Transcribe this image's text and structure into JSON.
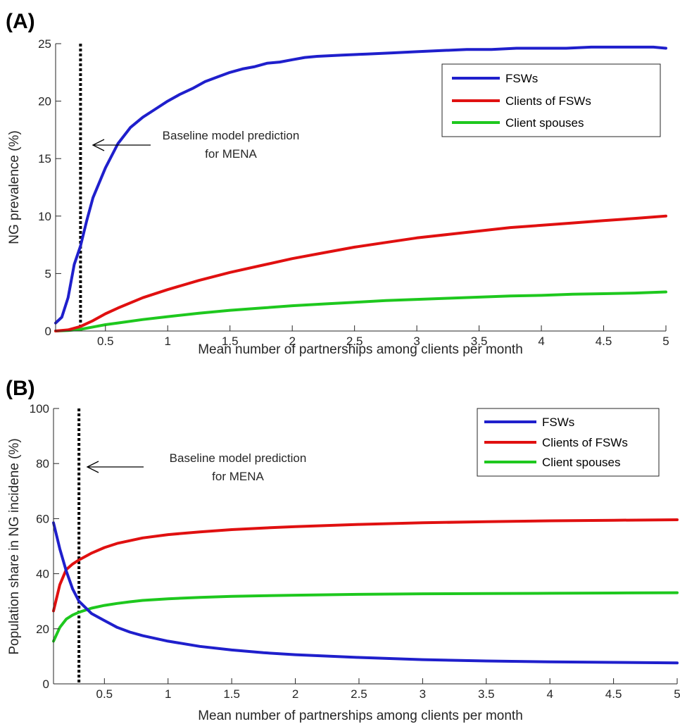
{
  "chart_data": [
    {
      "panel": "(A)",
      "type": "line",
      "xlabel": "Mean number of partnerships among clients per month",
      "ylabel": "NG prevalence (%)",
      "xlim": [
        0.1,
        5
      ],
      "ylim": [
        0,
        25
      ],
      "xticks": [
        0.5,
        1,
        1.5,
        2,
        2.5,
        3,
        3.5,
        4,
        4.5,
        5
      ],
      "yticks": [
        0,
        5,
        10,
        15,
        20,
        25
      ],
      "legend_position": "top-right",
      "grid": false,
      "baseline_x": 0.3,
      "annotation": [
        "Baseline model prediction",
        "for MENA"
      ],
      "colors": {
        "FSWs": "#0000ff",
        "Clients of FSWs": "#ff0000",
        "Client spouses": "#00cc00"
      },
      "series": [
        {
          "name": "FSWs",
          "color": "#1f1fcc",
          "x": [
            0.1,
            0.15,
            0.2,
            0.25,
            0.3,
            0.35,
            0.4,
            0.5,
            0.6,
            0.7,
            0.8,
            0.9,
            1.0,
            1.1,
            1.2,
            1.3,
            1.4,
            1.5,
            1.6,
            1.7,
            1.8,
            1.9,
            2.0,
            2.1,
            2.2,
            2.4,
            2.6,
            2.8,
            3.0,
            3.2,
            3.4,
            3.6,
            3.8,
            4.0,
            4.2,
            4.4,
            4.6,
            4.8,
            4.9,
            5.0
          ],
          "y": [
            0.7,
            1.2,
            2.9,
            5.8,
            7.4,
            9.6,
            11.6,
            14.2,
            16.3,
            17.7,
            18.6,
            19.3,
            20.0,
            20.6,
            21.1,
            21.7,
            22.1,
            22.5,
            22.8,
            23.0,
            23.3,
            23.4,
            23.6,
            23.8,
            23.9,
            24.0,
            24.1,
            24.2,
            24.3,
            24.4,
            24.5,
            24.5,
            24.6,
            24.6,
            24.6,
            24.7,
            24.7,
            24.7,
            24.7,
            24.6
          ]
        },
        {
          "name": "Clients of FSWs",
          "color": "#e01010",
          "x": [
            0.1,
            0.2,
            0.3,
            0.4,
            0.5,
            0.6,
            0.8,
            1.0,
            1.25,
            1.5,
            1.75,
            2.0,
            2.25,
            2.5,
            2.75,
            3.0,
            3.25,
            3.5,
            3.75,
            4.0,
            4.25,
            4.5,
            4.75,
            5.0
          ],
          "y": [
            0.0,
            0.1,
            0.4,
            0.9,
            1.5,
            2.0,
            2.9,
            3.6,
            4.4,
            5.1,
            5.7,
            6.3,
            6.8,
            7.3,
            7.7,
            8.1,
            8.4,
            8.7,
            9.0,
            9.2,
            9.4,
            9.6,
            9.8,
            10.0
          ]
        },
        {
          "name": "Client spouses",
          "color": "#1ec81e",
          "x": [
            0.1,
            0.2,
            0.3,
            0.4,
            0.5,
            0.6,
            0.8,
            1.0,
            1.25,
            1.5,
            1.75,
            2.0,
            2.25,
            2.5,
            2.75,
            3.0,
            3.25,
            3.5,
            3.75,
            4.0,
            4.25,
            4.5,
            4.75,
            5.0
          ],
          "y": [
            0.0,
            0.05,
            0.15,
            0.35,
            0.55,
            0.7,
            1.0,
            1.25,
            1.55,
            1.8,
            2.0,
            2.2,
            2.35,
            2.5,
            2.65,
            2.75,
            2.85,
            2.95,
            3.05,
            3.1,
            3.2,
            3.25,
            3.3,
            3.4
          ]
        }
      ]
    },
    {
      "panel": "(B)",
      "type": "line",
      "xlabel": "Mean number of partnerships among clients per month",
      "ylabel": "Population share in NG incidene (%)",
      "xlim": [
        0.1,
        5
      ],
      "ylim": [
        0,
        100
      ],
      "xticks": [
        0.5,
        1,
        1.5,
        2,
        2.5,
        3,
        3.5,
        4,
        4.5,
        5
      ],
      "yticks": [
        0,
        20,
        40,
        60,
        80,
        100
      ],
      "legend_position": "top-right",
      "grid": false,
      "baseline_x": 0.3,
      "annotation": [
        "Baseline model prediction",
        "for MENA"
      ],
      "colors": {
        "FSWs": "#0000ff",
        "Clients of FSWs": "#ff0000",
        "Client spouses": "#00cc00"
      },
      "series": [
        {
          "name": "FSWs",
          "color": "#1f1fcc",
          "x": [
            0.1,
            0.15,
            0.2,
            0.25,
            0.3,
            0.4,
            0.5,
            0.6,
            0.7,
            0.8,
            1.0,
            1.25,
            1.5,
            1.75,
            2.0,
            2.5,
            3.0,
            3.5,
            4.0,
            4.5,
            5.0
          ],
          "y": [
            58.5,
            49.0,
            41.0,
            34.5,
            30.0,
            25.5,
            23.0,
            20.5,
            18.8,
            17.5,
            15.5,
            13.6,
            12.3,
            11.3,
            10.6,
            9.6,
            8.8,
            8.3,
            8.0,
            7.8,
            7.6
          ]
        },
        {
          "name": "Clients of FSWs",
          "color": "#e01010",
          "x": [
            0.1,
            0.15,
            0.2,
            0.25,
            0.3,
            0.4,
            0.5,
            0.6,
            0.7,
            0.8,
            1.0,
            1.25,
            1.5,
            1.75,
            2.0,
            2.5,
            3.0,
            3.5,
            4.0,
            4.5,
            5.0
          ],
          "y": [
            26.5,
            36.0,
            41.5,
            43.5,
            45.0,
            47.5,
            49.5,
            51.0,
            52.0,
            53.0,
            54.2,
            55.2,
            56.0,
            56.6,
            57.1,
            57.9,
            58.5,
            58.9,
            59.2,
            59.4,
            59.6
          ]
        },
        {
          "name": "Client spouses",
          "color": "#1ec81e",
          "x": [
            0.1,
            0.15,
            0.2,
            0.25,
            0.3,
            0.4,
            0.5,
            0.6,
            0.7,
            0.8,
            1.0,
            1.25,
            1.5,
            1.75,
            2.0,
            2.5,
            3.0,
            3.5,
            4.0,
            4.5,
            5.0
          ],
          "y": [
            15.5,
            20.5,
            23.5,
            25.0,
            26.0,
            27.5,
            28.5,
            29.2,
            29.8,
            30.3,
            30.9,
            31.4,
            31.8,
            32.0,
            32.2,
            32.5,
            32.7,
            32.8,
            32.9,
            33.0,
            33.1
          ]
        }
      ]
    }
  ]
}
